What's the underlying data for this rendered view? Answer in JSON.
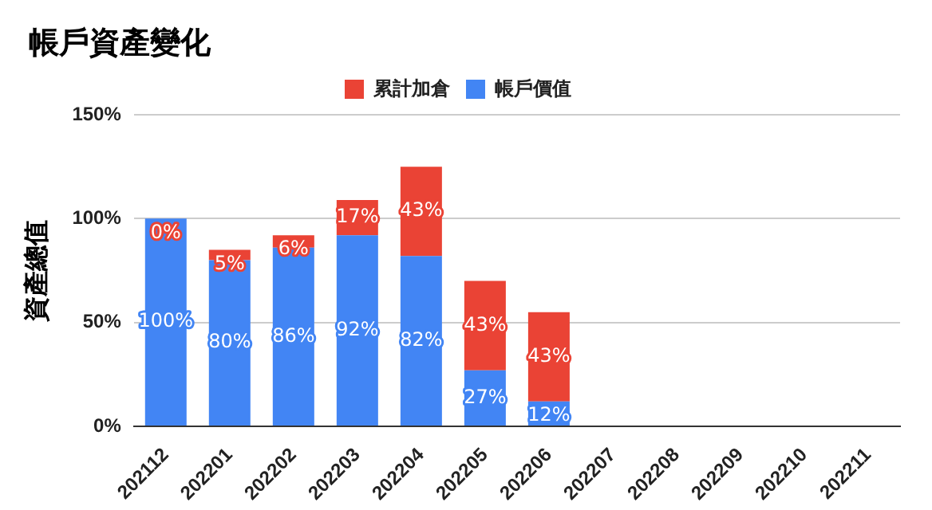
{
  "chart_data": {
    "type": "bar",
    "title": "帳戶資產變化",
    "ylabel": "資產總值",
    "categories": [
      "202112",
      "202201",
      "202202",
      "202203",
      "202204",
      "202205",
      "202206",
      "202207",
      "202208",
      "202209",
      "202210",
      "202211"
    ],
    "series": [
      {
        "name": "帳戶價值",
        "color": "#4285f4",
        "values": [
          100,
          80,
          86,
          92,
          82,
          27,
          12,
          null,
          null,
          null,
          null,
          null
        ],
        "value_labels": [
          "100%",
          "80%",
          "86%",
          "92%",
          "82%",
          "27%",
          "12%",
          null,
          null,
          null,
          null,
          null
        ]
      },
      {
        "name": "累計加倉",
        "color": "#ea4335",
        "values": [
          0,
          5,
          6,
          17,
          43,
          43,
          43,
          null,
          null,
          null,
          null,
          null
        ],
        "value_labels": [
          "0%",
          "5%",
          "6%",
          "17%",
          "43%",
          "43%",
          "43%",
          null,
          null,
          null,
          null,
          null
        ]
      }
    ],
    "stacked": true,
    "ylim": [
      0,
      150
    ],
    "yticks": [
      {
        "value": 0,
        "label": "0%"
      },
      {
        "value": 50,
        "label": "50%"
      },
      {
        "value": 100,
        "label": "100%"
      },
      {
        "value": 150,
        "label": "150%"
      }
    ],
    "grid": "y",
    "legend": "top"
  }
}
